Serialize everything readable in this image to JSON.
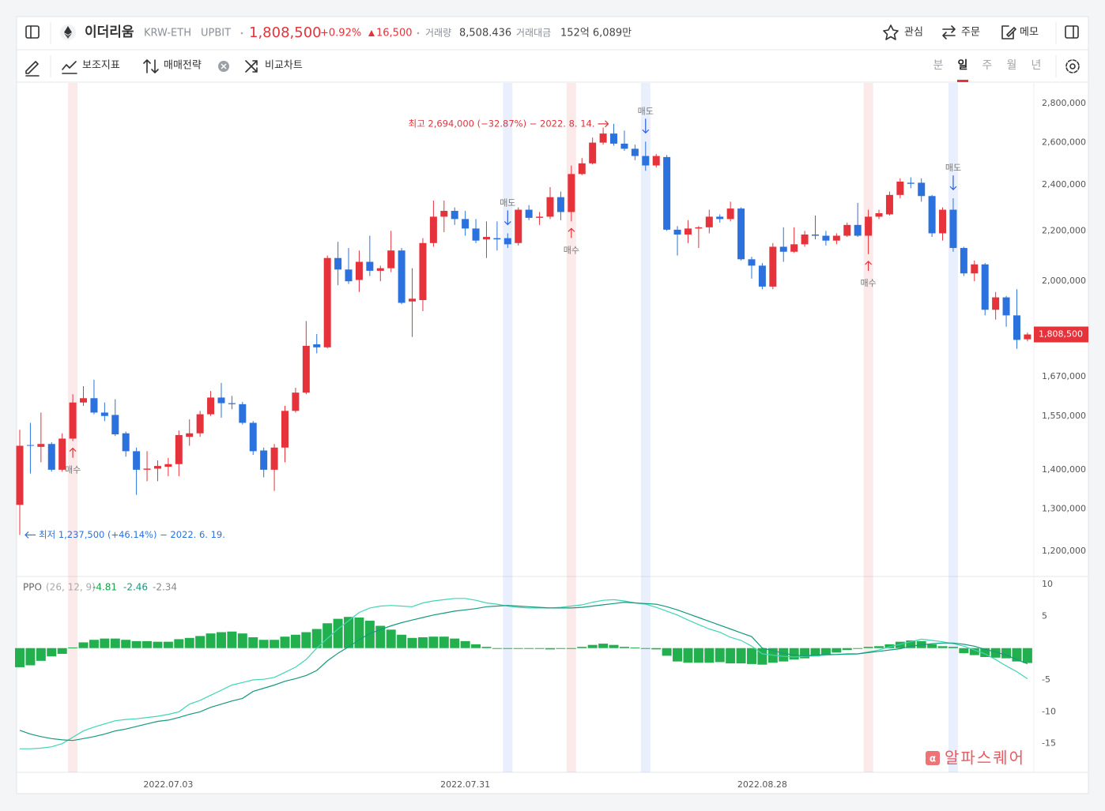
{
  "header": {
    "name": "이더리움",
    "symbol": "KRW-ETH",
    "exchange": "UPBIT",
    "price": "1,808,500",
    "change_rate": "+0.92%",
    "change": "16,500",
    "volume_label": "거래량",
    "volume": "8,508.436",
    "amount_label": "거래대금",
    "amount": "152억 6,089만",
    "actions": [
      "관심",
      "주문",
      "메모"
    ]
  },
  "toolbar": {
    "tools": [
      "보조지표",
      "매매전략",
      "비교차트"
    ],
    "periods": [
      "분",
      "일",
      "주",
      "월",
      "년"
    ],
    "selected_period": "일"
  },
  "watermark": "알파스퀘어",
  "chart_data": [
    {
      "type": "candlestick",
      "log_scale": true,
      "grid": false,
      "up_color": "#e5323b",
      "down_color": "#2b72de",
      "categories": [
        null,
        null,
        null,
        null,
        null,
        null,
        null,
        null,
        null,
        null,
        null,
        null,
        null,
        null,
        "2022.07.03",
        null,
        null,
        null,
        null,
        null,
        null,
        null,
        null,
        null,
        null,
        null,
        null,
        null,
        null,
        null,
        null,
        null,
        null,
        null,
        null,
        null,
        null,
        null,
        null,
        null,
        null,
        null,
        "2022.07.31",
        null,
        null,
        null,
        null,
        null,
        null,
        null,
        null,
        null,
        null,
        null,
        null,
        null,
        null,
        null,
        null,
        null,
        null,
        null,
        null,
        null,
        null,
        null,
        null,
        null,
        null,
        null,
        "2022.08.28",
        null,
        null,
        null,
        null,
        null,
        null,
        null,
        null,
        null,
        null,
        null,
        null,
        null,
        null,
        null,
        null,
        null,
        null,
        null,
        null,
        null,
        null,
        null,
        null,
        null
      ],
      "open": [
        1310000,
        1467000,
        1462000,
        1470000,
        1400000,
        1485000,
        1590000,
        1603000,
        1560000,
        1553000,
        1500000,
        1450000,
        1400000,
        1403000,
        1408000,
        1415000,
        1490000,
        1500000,
        1555000,
        1605000,
        1588000,
        1585000,
        1530000,
        1452000,
        1400000,
        1460000,
        1565000,
        1620000,
        1775000,
        1765000,
        2090000,
        2045000,
        2005000,
        2075000,
        2040000,
        2050000,
        2120000,
        1925000,
        1930000,
        2150000,
        2260000,
        2285000,
        2250000,
        2210000,
        2165000,
        2170000,
        2170000,
        2150000,
        2290000,
        2255000,
        2260000,
        2345000,
        2280000,
        2450000,
        2500000,
        2600000,
        2645000,
        2595000,
        2570000,
        2535000,
        2490000,
        2530000,
        2205000,
        2185000,
        2210000,
        2215000,
        2260000,
        2250000,
        2295000,
        2085000,
        2060000,
        1980000,
        2135000,
        2115000,
        2145000,
        2185000,
        2180000,
        2160000,
        2180000,
        2225000,
        2180000,
        2260000,
        2270000,
        2355000,
        2410000,
        2410000,
        2350000,
        2190000,
        2290000,
        2130000,
        2030000,
        2065000,
        1895000,
        1940000,
        1875000,
        1792000
      ],
      "high": [
        1510000,
        1530000,
        1560000,
        1475000,
        1500000,
        1615000,
        1640000,
        1660000,
        1590000,
        1600000,
        1505000,
        1460000,
        1450000,
        1425000,
        1432000,
        1508000,
        1540000,
        1565000,
        1625000,
        1650000,
        1610000,
        1592000,
        1535000,
        1460000,
        1470000,
        1580000,
        1635000,
        1855000,
        1810000,
        2100000,
        2155000,
        2130000,
        2120000,
        2180000,
        2060000,
        2200000,
        2130000,
        2050000,
        2170000,
        2330000,
        2330000,
        2300000,
        2285000,
        2250000,
        2240000,
        2240000,
        2190000,
        2300000,
        2310000,
        2280000,
        2390000,
        2370000,
        2490000,
        2525000,
        2625000,
        2675000,
        2694000,
        2660000,
        2590000,
        2605000,
        2545000,
        2540000,
        2220000,
        2245000,
        2220000,
        2290000,
        2270000,
        2325000,
        2300000,
        2095000,
        2070000,
        2150000,
        2215000,
        2215000,
        2200000,
        2265000,
        2200000,
        2190000,
        2235000,
        2320000,
        2290000,
        2290000,
        2370000,
        2430000,
        2435000,
        2430000,
        2355000,
        2300000,
        2340000,
        2135000,
        2080000,
        2070000,
        1960000,
        1945000,
        1970000,
        1815000
      ],
      "low": [
        1237500,
        1390000,
        1420000,
        1395000,
        1395000,
        1478000,
        1580000,
        1555000,
        1535000,
        1492000,
        1435000,
        1335000,
        1370000,
        1370000,
        1383000,
        1383000,
        1465000,
        1490000,
        1550000,
        1545000,
        1570000,
        1525000,
        1440000,
        1380000,
        1345000,
        1420000,
        1560000,
        1615000,
        1745000,
        1762000,
        1985000,
        1990000,
        1960000,
        2020000,
        2000000,
        2035000,
        1915000,
        1800000,
        1890000,
        2135000,
        2195000,
        2225000,
        2180000,
        2150000,
        2090000,
        2120000,
        2130000,
        2140000,
        2245000,
        2225000,
        2250000,
        2245000,
        2240000,
        2445000,
        2495000,
        2590000,
        2585000,
        2560000,
        2515000,
        2465000,
        2480000,
        2200000,
        2100000,
        2150000,
        2130000,
        2190000,
        2235000,
        2240000,
        2080000,
        2010000,
        1970000,
        1970000,
        2075000,
        2110000,
        2135000,
        2165000,
        2140000,
        2145000,
        2175000,
        2175000,
        2105000,
        2250000,
        2265000,
        2340000,
        2385000,
        2325000,
        2175000,
        2160000,
        2115000,
        2020000,
        2000000,
        1875000,
        1860000,
        1835000,
        1760000,
        1785000
      ],
      "close": [
        1465000,
        1465000,
        1470000,
        1400000,
        1485000,
        1590000,
        1603000,
        1560000,
        1550000,
        1497000,
        1450000,
        1400000,
        1403000,
        1410000,
        1415000,
        1495000,
        1500000,
        1555000,
        1605000,
        1588000,
        1585000,
        1530000,
        1450000,
        1400000,
        1460000,
        1565000,
        1620000,
        1770000,
        1765000,
        2090000,
        2045000,
        2000000,
        2075000,
        2040000,
        2050000,
        2120000,
        1920000,
        1935000,
        2150000,
        2260000,
        2285000,
        2250000,
        2210000,
        2160000,
        2175000,
        2165000,
        2145000,
        2290000,
        2255000,
        2260000,
        2345000,
        2280000,
        2450000,
        2500000,
        2600000,
        2645000,
        2595000,
        2570000,
        2535000,
        2490000,
        2535000,
        2205000,
        2185000,
        2210000,
        2215000,
        2260000,
        2250000,
        2295000,
        2085000,
        2060000,
        1980000,
        2135000,
        2115000,
        2145000,
        2185000,
        2180000,
        2160000,
        2180000,
        2225000,
        2180000,
        2260000,
        2275000,
        2355000,
        2415000,
        2405000,
        2350000,
        2190000,
        2290000,
        2130000,
        2030000,
        2065000,
        1895000,
        1940000,
        1875000,
        1790000,
        1808500
      ],
      "ylim": [
        1144000,
        2911000
      ],
      "yticks": [
        {
          "value": 2800000,
          "label": "2,800,000"
        },
        {
          "value": 2600000,
          "label": "2,600,000"
        },
        {
          "value": 2400000,
          "label": "2,400,000"
        },
        {
          "value": 2200000,
          "label": "2,200,000"
        },
        {
          "value": 2000000,
          "label": "2,000,000"
        },
        {
          "value": 1670000,
          "label": "1,670,000"
        },
        {
          "value": 1550000,
          "label": "1,550,000"
        },
        {
          "value": 1400000,
          "label": "1,400,000"
        },
        {
          "value": 1300000,
          "label": "1,300,000"
        },
        {
          "value": 1200000,
          "label": "1,200,000"
        }
      ],
      "last_price": {
        "value": 1808500,
        "label": "1,808,500",
        "color": "#e5323b"
      },
      "annotations": [
        {
          "text": "최고 2,694,000 (−32.87%) − 2022. 8. 14.",
          "index": 56,
          "value": 2694000,
          "color": "#e5323b"
        },
        {
          "text": "최저 1,237,500 (+46.14%) − 2022. 6. 19.",
          "index": 0,
          "value": 1237500,
          "color": "#2b72de"
        }
      ],
      "signals": [
        {
          "index": 5,
          "label": "매수",
          "color": "#e5323b",
          "position": "below"
        },
        {
          "index": 46,
          "label": "매도",
          "color": "#2b5fe0",
          "position": "above"
        },
        {
          "index": 52,
          "label": "매수",
          "color": "#e5323b",
          "position": "below"
        },
        {
          "index": 59,
          "label": "매도",
          "color": "#2b5fe0",
          "position": "above"
        },
        {
          "index": 80,
          "label": "매수",
          "color": "#e5323b",
          "position": "below"
        },
        {
          "index": 88,
          "label": "매도",
          "color": "#2b5fe0",
          "position": "above"
        }
      ]
    },
    {
      "type": "ppo",
      "title": "PPO",
      "params": "(26, 12, 9)",
      "ylim": [
        -19.5,
        11
      ],
      "yticks": [
        10,
        5,
        -5,
        -10,
        -15
      ],
      "grid": false,
      "series": [
        {
          "kind": "line",
          "color": "#3fd6b4",
          "label_color": "#17a34a",
          "values": [
            -15.8,
            -15.8,
            -15.7,
            -15.5,
            -15.0,
            -14.0,
            -13.0,
            -12.4,
            -11.9,
            -11.4,
            -11.2,
            -11.1,
            -10.9,
            -10.7,
            -10.4,
            -10.0,
            -8.8,
            -8.2,
            -7.4,
            -6.6,
            -5.8,
            -5.4,
            -5.0,
            -4.9,
            -4.6,
            -3.8,
            -3.0,
            -1.8,
            0.0,
            1.5,
            3.0,
            4.3,
            5.6,
            6.3,
            6.6,
            6.7,
            6.6,
            6.5,
            7.1,
            7.4,
            7.6,
            7.8,
            7.8,
            7.5,
            7.1,
            6.9,
            6.6,
            6.4,
            6.3,
            6.3,
            6.3,
            6.4,
            6.6,
            6.8,
            7.2,
            7.5,
            7.6,
            7.4,
            7.1,
            6.9,
            6.4,
            5.8,
            5.2,
            4.4,
            3.7,
            3.0,
            2.5,
            1.7,
            1.2,
            0.3,
            -0.9,
            -1.1,
            -1.3,
            -1.4,
            -1.3,
            -1.2,
            -1.1,
            -1.0,
            -1.0,
            -0.9,
            -0.6,
            -0.3,
            0.2,
            0.6,
            1.0,
            1.4,
            1.2,
            1.0,
            0.7,
            0.3,
            -0.3,
            -0.9,
            -1.8,
            -2.8,
            -3.7,
            -4.81
          ]
        },
        {
          "kind": "line",
          "color": "#15997f",
          "label_color": "#15997f",
          "values": [
            -12.9,
            -13.5,
            -13.9,
            -14.2,
            -14.4,
            -14.5,
            -14.2,
            -13.9,
            -13.5,
            -13.0,
            -12.7,
            -12.3,
            -11.9,
            -11.5,
            -11.3,
            -10.9,
            -10.4,
            -10.0,
            -9.3,
            -8.8,
            -8.3,
            -7.9,
            -6.8,
            -6.3,
            -5.8,
            -5.2,
            -4.8,
            -4.3,
            -3.5,
            -2.0,
            -0.8,
            0.2,
            1.3,
            2.3,
            2.9,
            3.5,
            4.0,
            4.4,
            4.8,
            5.2,
            5.5,
            5.8,
            6.0,
            6.2,
            6.5,
            6.6,
            6.7,
            6.6,
            6.5,
            6.4,
            6.3,
            6.3,
            6.3,
            6.4,
            6.6,
            6.8,
            7.0,
            7.2,
            7.1,
            7.0,
            6.9,
            6.5,
            6.0,
            5.4,
            4.8,
            4.2,
            3.6,
            3.0,
            2.4,
            1.8,
            0.0,
            -0.4,
            -0.8,
            -1.1,
            -1.2,
            -1.1,
            -1.0,
            -1.0,
            -0.9,
            -0.9,
            -0.7,
            -0.5,
            -0.3,
            -0.1,
            0.3,
            0.5,
            0.7,
            0.8,
            0.8,
            0.6,
            0.3,
            -0.2,
            -0.6,
            -1.1,
            -1.8,
            -2.46
          ]
        },
        {
          "kind": "bar",
          "color": "#22b04e",
          "label_color": "#888888",
          "values": [
            -3.0,
            -2.7,
            -2.0,
            -1.3,
            -0.9,
            0.1,
            0.9,
            1.3,
            1.5,
            1.5,
            1.3,
            1.1,
            1.1,
            1.0,
            1.0,
            1.4,
            1.6,
            1.9,
            2.3,
            2.5,
            2.6,
            2.3,
            1.7,
            1.3,
            1.3,
            1.8,
            2.1,
            2.5,
            3.0,
            3.9,
            4.6,
            4.9,
            4.8,
            4.3,
            3.5,
            2.9,
            2.1,
            1.6,
            1.7,
            1.8,
            1.8,
            1.5,
            1.1,
            0.6,
            0.2,
            0,
            -0.1,
            -0.1,
            -0.1,
            -0.1,
            -0.2,
            -0.1,
            0,
            0.2,
            0.5,
            0.7,
            0.5,
            0.2,
            0.1,
            -0.1,
            -0.2,
            -1.2,
            -2.1,
            -2.3,
            -2.3,
            -2.3,
            -2.2,
            -2.4,
            -2.4,
            -2.5,
            -2.6,
            -2.3,
            -2.1,
            -1.8,
            -1.6,
            -1.3,
            -1.1,
            -0.7,
            -0.3,
            -0.1,
            0.2,
            0.3,
            0.6,
            1.0,
            1.2,
            1.1,
            0.6,
            0.3,
            0.2,
            -0.8,
            -1.1,
            -1.4,
            -1.5,
            -1.6,
            -2.1,
            -2.34
          ]
        }
      ]
    }
  ]
}
